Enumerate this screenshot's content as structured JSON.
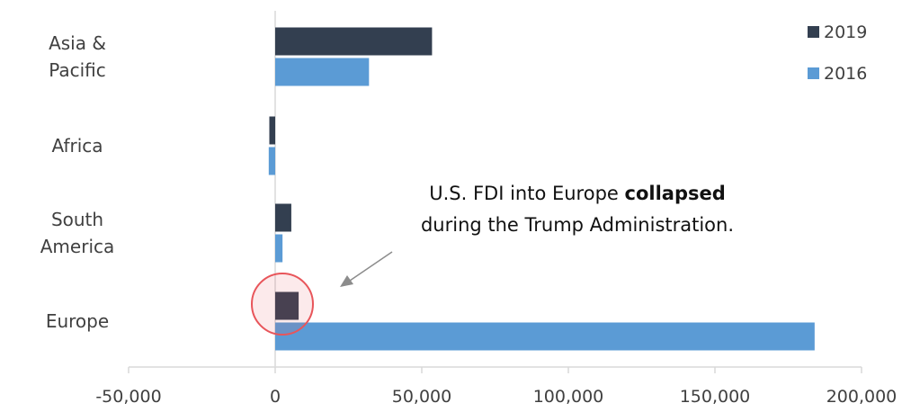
{
  "chart_data": {
    "type": "bar",
    "orientation": "horizontal",
    "categories": [
      [
        "Asia &",
        "Pacific"
      ],
      [
        "Africa"
      ],
      [
        "South",
        "America"
      ],
      [
        "Europe"
      ]
    ],
    "series": [
      {
        "name": "2019",
        "color": "#333f50",
        "values": [
          53500,
          -2000,
          5500,
          8000
        ]
      },
      {
        "name": "2016",
        "color": "#5b9bd5",
        "values": [
          32000,
          -2200,
          2500,
          184000
        ]
      }
    ],
    "xlim": [
      -50000,
      200000
    ],
    "xticks": [
      -50000,
      0,
      50000,
      100000,
      150000,
      200000
    ],
    "xtick_labels": [
      "-50,000",
      "0",
      "50,000",
      "100,000",
      "150,000",
      "200,000"
    ],
    "legend_position": "top-right",
    "grid": false,
    "annotation": {
      "line1_prefix": "U.S. FDI into Europe ",
      "line1_bold": "collapsed",
      "line2": "during the Trump Administration.",
      "target": {
        "category": "Europe",
        "series": "2019"
      },
      "highlight_color": "#e8555a"
    }
  }
}
